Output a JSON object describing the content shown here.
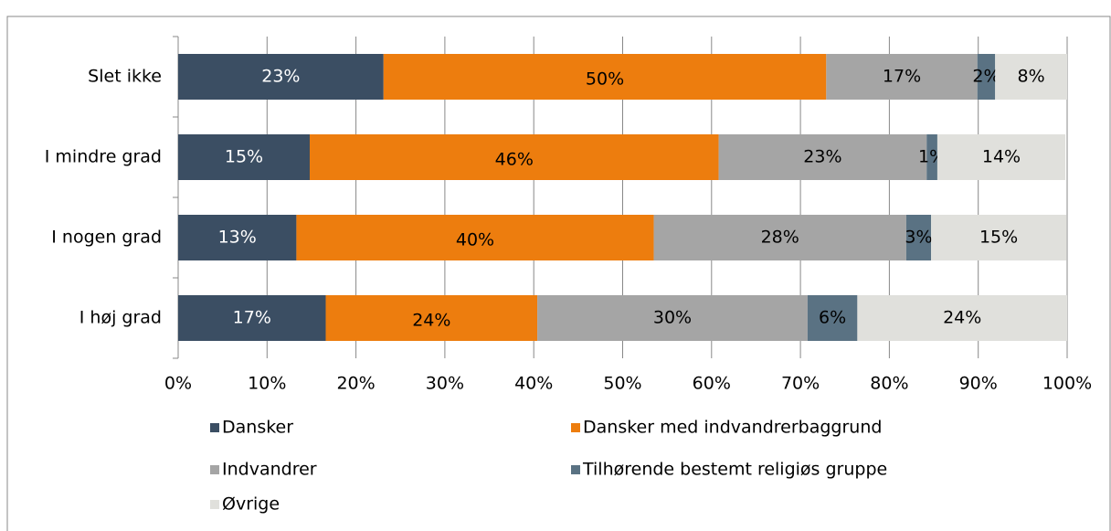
{
  "chart_data": {
    "type": "stacked-bar-horizontal",
    "categories": [
      "Slet ikke",
      "I mindre grad",
      "I nogen grad",
      "I høj grad"
    ],
    "series": [
      {
        "name": "Dansker",
        "color": "#3b4e63",
        "label_color": "#ffffff",
        "values": [
          23.1,
          14.8,
          13.3,
          16.6
        ],
        "value_labels": [
          "23%",
          "15%",
          "13%",
          "17%"
        ]
      },
      {
        "name": "Dansker med indvandrerbaggrund",
        "color": "#ed7d0e",
        "label_color": "#000000",
        "values": [
          49.8,
          46.0,
          40.2,
          23.8
        ],
        "value_labels": [
          "50%",
          "46%",
          "40%",
          "24%"
        ]
      },
      {
        "name": "Indvandrer",
        "color": "#a5a5a5",
        "label_color": "#000000",
        "values": [
          17.0,
          23.4,
          28.4,
          30.4
        ],
        "value_labels": [
          "17%",
          "23%",
          "28%",
          "30%"
        ]
      },
      {
        "name": "Tilhørende bestemt religiøs gruppe",
        "color": "#5a7283",
        "label_color": "#000000",
        "values": [
          2.0,
          1.2,
          2.8,
          5.6
        ],
        "value_labels": [
          "2%",
          "1%",
          "3%",
          "6%"
        ]
      },
      {
        "name": "Øvrige",
        "color": "#e0e0dc",
        "label_color": "#000000",
        "values": [
          8.1,
          14.4,
          15.2,
          23.6
        ],
        "value_labels": [
          "8%",
          "14%",
          "15%",
          "24%"
        ]
      }
    ],
    "xlim": [
      0,
      100
    ],
    "xticks": [
      {
        "value": 0,
        "label": "0%"
      },
      {
        "value": 10,
        "label": "10%"
      },
      {
        "value": 20,
        "label": "20%"
      },
      {
        "value": 30,
        "label": "30%"
      },
      {
        "value": 40,
        "label": "40%"
      },
      {
        "value": 50,
        "label": "50%"
      },
      {
        "value": 60,
        "label": "60%"
      },
      {
        "value": 70,
        "label": "70%"
      },
      {
        "value": 80,
        "label": "80%"
      },
      {
        "value": 90,
        "label": "90%"
      },
      {
        "value": 100,
        "label": "100%"
      }
    ],
    "grid": true,
    "legend": "bottom"
  }
}
